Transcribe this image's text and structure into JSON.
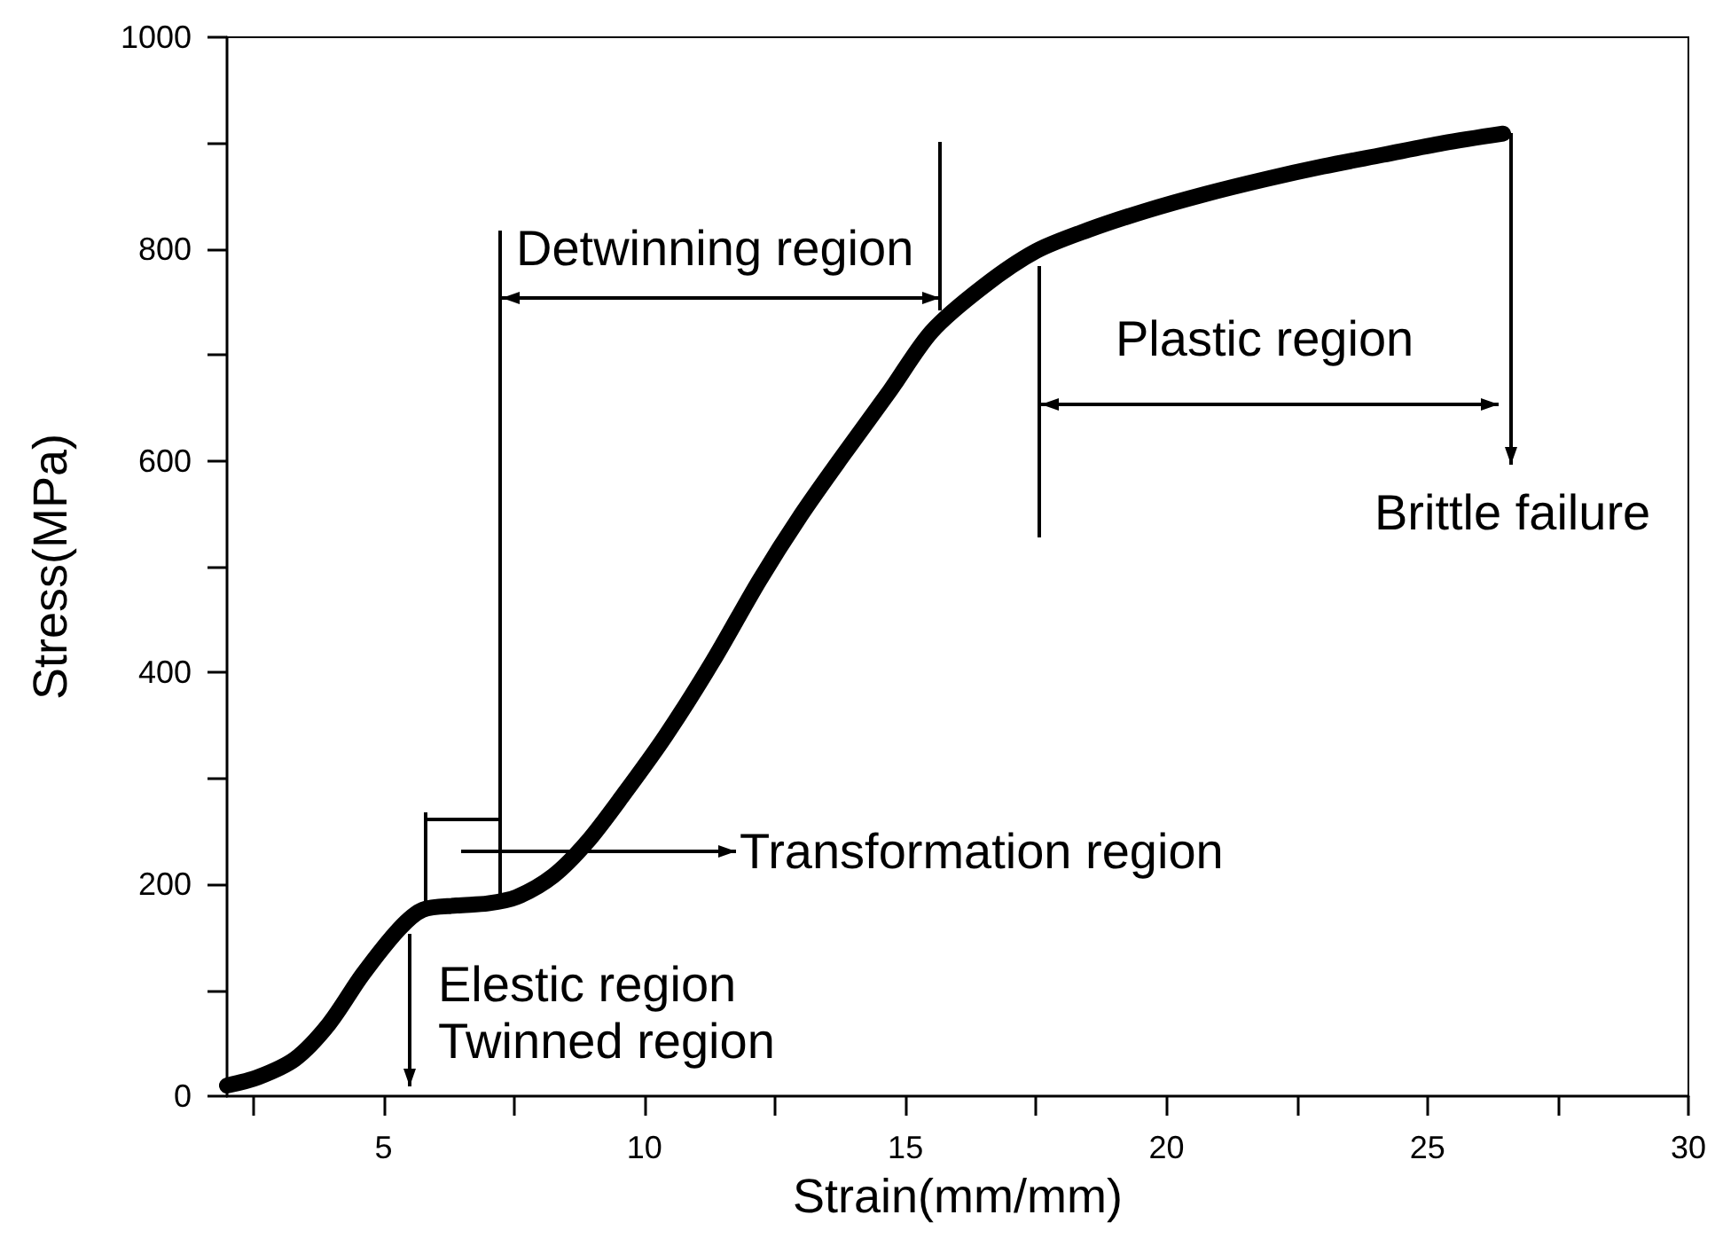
{
  "chart_data": {
    "type": "line",
    "xlabel": "Strain(mm/mm)",
    "ylabel": "Stress(MPa)",
    "x": [
      2.0,
      2.6,
      3.3,
      3.95,
      4.6,
      5.3,
      5.75,
      6.4,
      7.0,
      7.55,
      8.25,
      8.9,
      9.6,
      10.4,
      11.3,
      12.2,
      13.0,
      13.8,
      14.7,
      15.5,
      16.5,
      17.5,
      18.5,
      19.6,
      20.75,
      21.9,
      23.0,
      24.15,
      25.3,
      26.45
    ],
    "values": [
      10,
      18,
      35,
      68,
      115,
      158,
      176,
      180,
      182,
      188,
      208,
      240,
      285,
      340,
      410,
      487,
      549,
      605,
      666,
      722,
      765,
      798,
      818,
      836,
      852,
      866,
      878,
      889,
      900,
      909
    ],
    "color": "#000000",
    "marker": "none",
    "line_style": "solid",
    "xlim": [
      2,
      30
    ],
    "xticks": [
      {
        "value": 2.5,
        "label": null
      },
      5,
      {
        "value": 7.5,
        "label": null
      },
      10,
      {
        "value": 12.5,
        "label": null
      },
      15,
      {
        "value": 17.5,
        "label": null
      },
      20,
      {
        "value": 22.5,
        "label": null
      },
      25,
      {
        "value": 27.5,
        "label": null
      },
      30
    ],
    "ylim": [
      0,
      1000
    ],
    "yticks": [
      0,
      {
        "value": 100,
        "label": null
      },
      200,
      {
        "value": 300,
        "label": null
      },
      400,
      {
        "value": 500,
        "label": null
      },
      600,
      {
        "value": 700,
        "label": null
      },
      800,
      {
        "value": 900,
        "label": null
      },
      1000
    ],
    "annotations": [
      "Detwinning region",
      "Plastic region",
      "Brittle failure",
      "Transformation region",
      "Elestic region",
      {
        "text": "Twinned region",
        "x": 5.5,
        "y": 165
      }
    ]
  }
}
